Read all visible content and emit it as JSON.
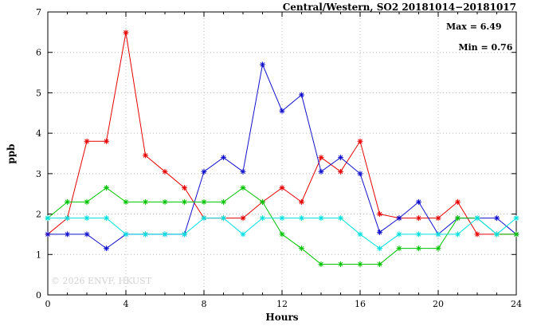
{
  "watermark": "© 2026 ENVF, HKUST",
  "chart_data": {
    "type": "line",
    "title": "Central/Western, SO2 20181014−20181017",
    "xlabel": "Hours",
    "ylabel": "ppb",
    "xlim": [
      0,
      24
    ],
    "ylim": [
      0,
      7
    ],
    "xticks": [
      0,
      4,
      8,
      12,
      16,
      20,
      24
    ],
    "minor_xtick_step": 1,
    "yticks": [
      0,
      1,
      2,
      3,
      4,
      5,
      6,
      7
    ],
    "grid": true,
    "legend_position": "none",
    "marker": "asterisk",
    "annotations": {
      "max": "Max = 6.49",
      "min": "Min = 0.76"
    },
    "x": [
      0,
      1,
      2,
      3,
      4,
      5,
      6,
      7,
      8,
      9,
      10,
      11,
      12,
      13,
      14,
      15,
      16,
      17,
      18,
      19,
      20,
      21,
      22,
      23,
      24
    ],
    "series": [
      {
        "name": "red-series",
        "color": "#e60000",
        "values": [
          1.5,
          1.9,
          3.8,
          3.8,
          6.49,
          3.45,
          3.05,
          2.65,
          1.9,
          1.9,
          1.9,
          2.3,
          2.65,
          2.3,
          3.4,
          3.05,
          3.8,
          2.0,
          1.9,
          1.9,
          1.9,
          2.3,
          1.5,
          1.5,
          1.5
        ]
      },
      {
        "name": "blue-series",
        "color": "#1010cc",
        "values": [
          1.5,
          1.5,
          1.5,
          1.15,
          1.5,
          1.5,
          1.5,
          1.5,
          3.05,
          3.4,
          3.05,
          5.7,
          4.55,
          4.95,
          3.05,
          3.4,
          3.0,
          1.55,
          1.9,
          2.3,
          1.5,
          1.9,
          1.9,
          1.9,
          1.5
        ]
      },
      {
        "name": "green-series",
        "color": "#00c400",
        "values": [
          1.9,
          2.3,
          2.3,
          2.65,
          2.3,
          2.3,
          2.3,
          2.3,
          2.3,
          2.3,
          2.65,
          2.3,
          1.5,
          1.15,
          0.76,
          0.76,
          0.76,
          0.76,
          1.15,
          1.15,
          1.15,
          1.9,
          1.9,
          1.5,
          1.5
        ]
      },
      {
        "name": "cyan-series",
        "color": "#00e0e0",
        "values": [
          1.9,
          1.9,
          1.9,
          1.9,
          1.5,
          1.5,
          1.5,
          1.5,
          1.9,
          1.9,
          1.5,
          1.9,
          1.9,
          1.9,
          1.9,
          1.9,
          1.5,
          1.15,
          1.5,
          1.5,
          1.5,
          1.5,
          1.9,
          1.5,
          1.9
        ]
      }
    ],
    "plot_style": {
      "grid_color": "#b8b8b8",
      "axis_color": "#000000",
      "background": "#ffffff"
    }
  }
}
